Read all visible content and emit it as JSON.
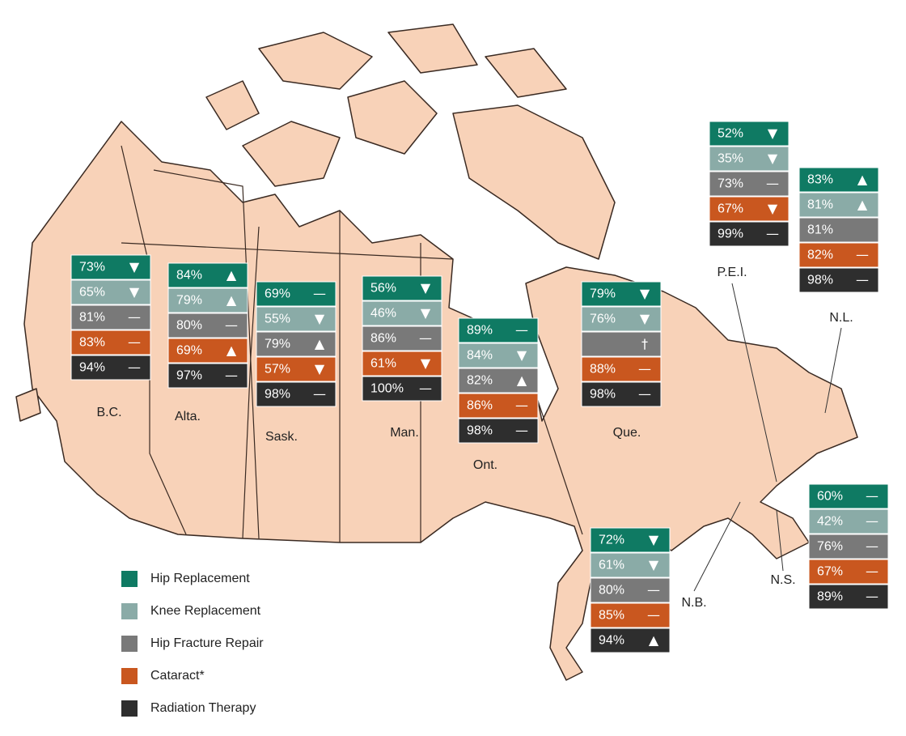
{
  "provinces": [
    {
      "name": "B.C.",
      "rows": [
        {
          "value": "73%",
          "trend": "▼"
        },
        {
          "value": "65%",
          "trend": "▼"
        },
        {
          "value": "81%",
          "trend": "—"
        },
        {
          "value": "83%",
          "trend": "—"
        },
        {
          "value": "94%",
          "trend": "—"
        }
      ]
    },
    {
      "name": "Alta.",
      "rows": [
        {
          "value": "84%",
          "trend": "▲"
        },
        {
          "value": "79%",
          "trend": "▲"
        },
        {
          "value": "80%",
          "trend": "—"
        },
        {
          "value": "69%",
          "trend": "▲"
        },
        {
          "value": "97%",
          "trend": "—"
        }
      ]
    },
    {
      "name": "Sask.",
      "rows": [
        {
          "value": "69%",
          "trend": "—"
        },
        {
          "value": "55%",
          "trend": "▼"
        },
        {
          "value": "79%",
          "trend": "▲"
        },
        {
          "value": "57%",
          "trend": "▼"
        },
        {
          "value": "98%",
          "trend": "—"
        }
      ]
    },
    {
      "name": "Man.",
      "rows": [
        {
          "value": "56%",
          "trend": "▼"
        },
        {
          "value": "46%",
          "trend": "▼"
        },
        {
          "value": "86%",
          "trend": "—"
        },
        {
          "value": "61%",
          "trend": "▼"
        },
        {
          "value": "100%",
          "trend": "—"
        }
      ]
    },
    {
      "name": "Ont.",
      "rows": [
        {
          "value": "89%",
          "trend": "—"
        },
        {
          "value": "84%",
          "trend": "▼"
        },
        {
          "value": "82%",
          "trend": "▲"
        },
        {
          "value": "86%",
          "trend": "—"
        },
        {
          "value": "98%",
          "trend": "—"
        }
      ]
    },
    {
      "name": "Que.",
      "rows": [
        {
          "value": "79%",
          "trend": "▼"
        },
        {
          "value": "76%",
          "trend": "▼"
        },
        {
          "value": null,
          "trend": "†"
        },
        {
          "value": "88%",
          "trend": "—"
        },
        {
          "value": "98%",
          "trend": "—"
        }
      ]
    },
    {
      "name": "P.E.I.",
      "rows": [
        {
          "value": "52%",
          "trend": "▼"
        },
        {
          "value": "35%",
          "trend": "▼"
        },
        {
          "value": "73%",
          "trend": "—"
        },
        {
          "value": "67%",
          "trend": "▼"
        },
        {
          "value": "99%",
          "trend": "—"
        }
      ]
    },
    {
      "name": "N.L.",
      "rows": [
        {
          "value": "83%",
          "trend": "▲"
        },
        {
          "value": "81%",
          "trend": "▲"
        },
        {
          "value": "81%",
          "trend": null
        },
        {
          "value": "82%",
          "trend": "—"
        },
        {
          "value": "98%",
          "trend": "—"
        }
      ]
    },
    {
      "name": "N.B.",
      "rows": [
        {
          "value": "72%",
          "trend": "▼"
        },
        {
          "value": "61%",
          "trend": "▼"
        },
        {
          "value": "80%",
          "trend": "—"
        },
        {
          "value": "85%",
          "trend": "—"
        },
        {
          "value": "94%",
          "trend": "▲"
        }
      ]
    },
    {
      "name": "N.S.",
      "rows": [
        {
          "value": "60%",
          "trend": "—"
        },
        {
          "value": "42%",
          "trend": "—"
        },
        {
          "value": "76%",
          "trend": "—"
        },
        {
          "value": "67%",
          "trend": "—"
        },
        {
          "value": "89%",
          "trend": "—"
        }
      ]
    }
  ],
  "legend": [
    {
      "label": "Hip Replacement",
      "color": "#0f7a63"
    },
    {
      "label": "Knee Replacement",
      "color": "#8aaba7"
    },
    {
      "label": "Hip Fracture Repair",
      "color": "#797979"
    },
    {
      "label": "Cataract*",
      "color": "#c9571f"
    },
    {
      "label": "Radiation Therapy",
      "color": "#2e2e2e"
    }
  ]
}
